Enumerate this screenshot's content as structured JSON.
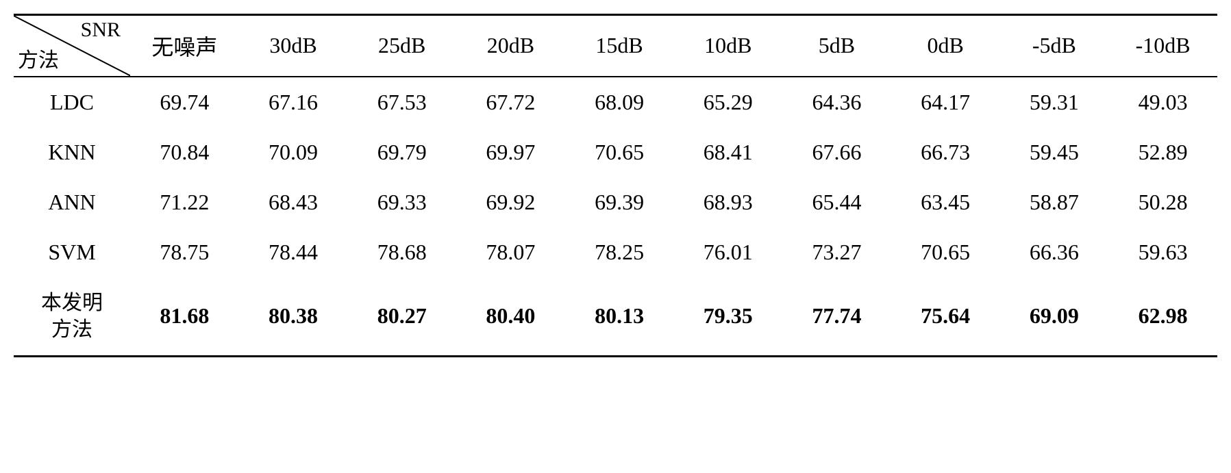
{
  "table": {
    "header": {
      "diagonal_top": "SNR",
      "diagonal_bottom": "方法",
      "columns": [
        "无噪声",
        "30dB",
        "25dB",
        "20dB",
        "15dB",
        "10dB",
        "5dB",
        "0dB",
        "-5dB",
        "-10dB"
      ]
    },
    "rows": [
      {
        "label": "LDC",
        "label_class": "row-label",
        "bold": false,
        "values": [
          "69.74",
          "67.16",
          "67.53",
          "67.72",
          "68.09",
          "65.29",
          "64.36",
          "64.17",
          "59.31",
          "49.03"
        ]
      },
      {
        "label": "KNN",
        "label_class": "row-label",
        "bold": false,
        "values": [
          "70.84",
          "70.09",
          "69.79",
          "69.97",
          "70.65",
          "68.41",
          "67.66",
          "66.73",
          "59.45",
          "52.89"
        ]
      },
      {
        "label": "ANN",
        "label_class": "row-label",
        "bold": false,
        "values": [
          "71.22",
          "68.43",
          "69.33",
          "69.92",
          "69.39",
          "68.93",
          "65.44",
          "63.45",
          "58.87",
          "50.28"
        ]
      },
      {
        "label": "SVM",
        "label_class": "row-label",
        "bold": false,
        "values": [
          "78.75",
          "78.44",
          "78.68",
          "78.07",
          "78.25",
          "76.01",
          "73.27",
          "70.65",
          "66.36",
          "59.63"
        ]
      },
      {
        "label": "本发明<br>方法",
        "label_class": "row-label-cn",
        "bold": true,
        "values": [
          "81.68",
          "80.38",
          "80.27",
          "80.40",
          "80.13",
          "79.35",
          "77.74",
          "75.64",
          "69.09",
          "62.98"
        ]
      }
    ],
    "styling": {
      "background_color": "#ffffff",
      "text_color": "#000000",
      "border_color": "#000000",
      "header_fontsize": 32,
      "body_fontsize": 32,
      "bold_row_index": 4
    }
  }
}
